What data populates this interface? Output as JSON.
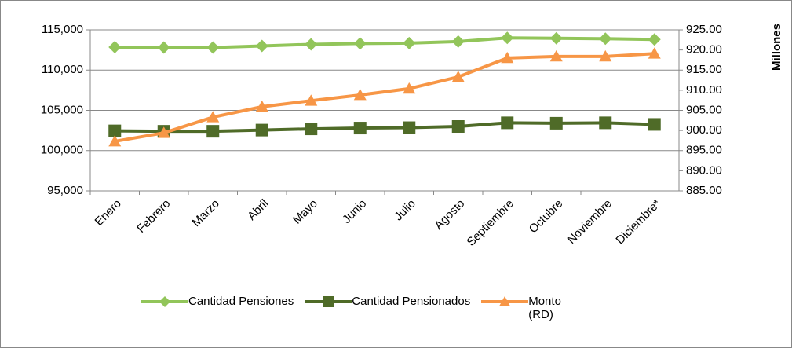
{
  "chart_data": {
    "type": "line",
    "categories": [
      "Enero",
      "Febrero",
      "Marzo",
      "Abril",
      "Mayo",
      "Junio",
      "Julio",
      "Agosto",
      "Septiembre",
      "Octubre",
      "Noviembre",
      "Diciembre*"
    ],
    "y2_label": "Millones",
    "ylim": [
      95000,
      115000
    ],
    "yticks": [
      {
        "value": 95000,
        "label": "95,000"
      },
      {
        "value": 100000,
        "label": "100,000"
      },
      {
        "value": 105000,
        "label": "105,000"
      },
      {
        "value": 110000,
        "label": "110,000"
      },
      {
        "value": 115000,
        "label": "115,000"
      }
    ],
    "y2lim": [
      885,
      925
    ],
    "y2ticks": [
      {
        "value": 885,
        "label": "885.00"
      },
      {
        "value": 890,
        "label": "890.00"
      },
      {
        "value": 895,
        "label": "895.00"
      },
      {
        "value": 900,
        "label": "900.00"
      },
      {
        "value": 905,
        "label": "905.00"
      },
      {
        "value": 910,
        "label": "910.00"
      },
      {
        "value": 915,
        "label": "915.00"
      },
      {
        "value": 920,
        "label": "920.00"
      },
      {
        "value": 925,
        "label": "925.00"
      }
    ],
    "grid": true,
    "legend": "bottom",
    "series": [
      {
        "name": "Cantidad Pensiones",
        "color": "#92c55a",
        "marker": "diamond",
        "values": [
          112850,
          112800,
          112800,
          113000,
          113200,
          113300,
          113350,
          113550,
          114000,
          113950,
          113900,
          113800
        ]
      },
      {
        "name": "Cantidad Pensionados",
        "color": "#4f6b28",
        "marker": "square",
        "values": [
          102450,
          102400,
          102400,
          102550,
          102700,
          102800,
          102850,
          103000,
          103450,
          103400,
          103450,
          103250
        ]
      },
      {
        "name": "Monto (RD)",
        "color": "#f79646",
        "marker": "triangle",
        "axis": "y2",
        "values": [
          897.3,
          899.4,
          903.3,
          905.9,
          907.4,
          908.8,
          910.4,
          913.3,
          918.0,
          918.4,
          918.4,
          919.1
        ]
      }
    ]
  }
}
